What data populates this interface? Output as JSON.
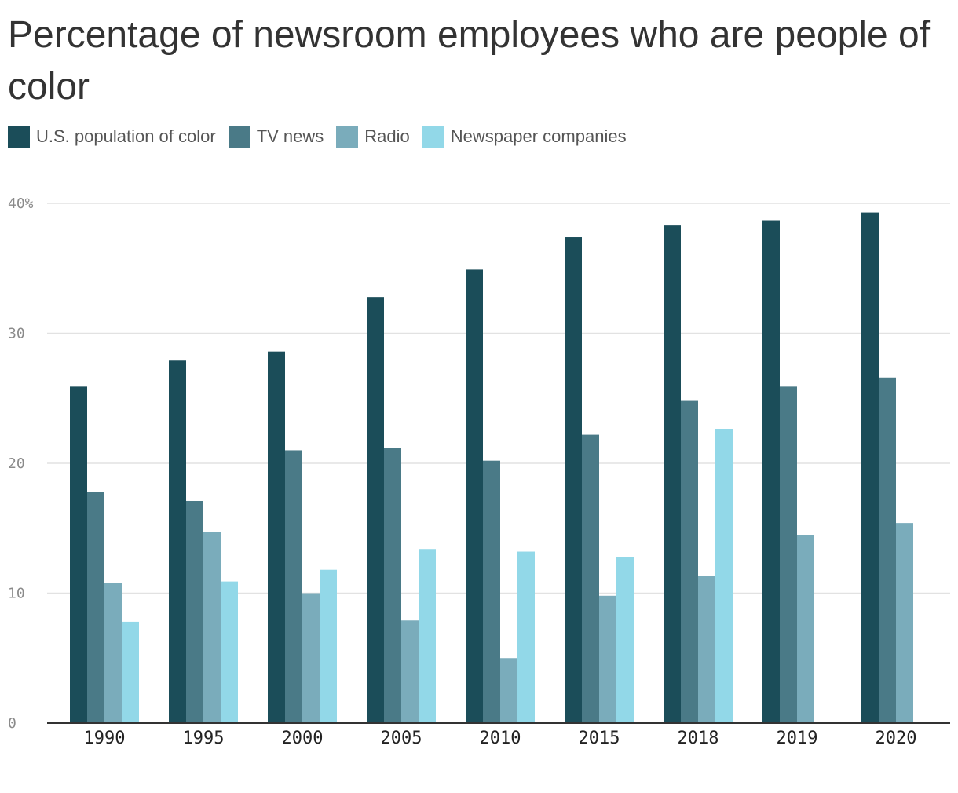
{
  "chart_data": {
    "type": "bar",
    "title": "Percentage of newsroom employees who are people of color",
    "xlabel": "",
    "ylabel": "",
    "categories": [
      "1990",
      "1995",
      "2000",
      "2005",
      "2010",
      "2015",
      "2018",
      "2019",
      "2020"
    ],
    "series": [
      {
        "name": "U.S. population of color",
        "color": "#1b4d59",
        "values": [
          25.9,
          27.9,
          28.6,
          32.8,
          34.9,
          37.4,
          38.3,
          38.7,
          39.3
        ]
      },
      {
        "name": "TV news",
        "color": "#4a7a87",
        "values": [
          17.8,
          17.1,
          21.0,
          21.2,
          20.2,
          22.2,
          24.8,
          25.9,
          26.6
        ]
      },
      {
        "name": "Radio",
        "color": "#7aacbb",
        "values": [
          10.8,
          14.7,
          10.0,
          7.9,
          5.0,
          9.8,
          11.3,
          14.5,
          15.4
        ]
      },
      {
        "name": "Newspaper companies",
        "color": "#92d8e8",
        "values": [
          7.8,
          10.9,
          11.8,
          13.4,
          13.2,
          12.8,
          22.6,
          null,
          null
        ]
      }
    ],
    "ylim": [
      0,
      40
    ],
    "yticks": [
      {
        "value": 0,
        "label": "0"
      },
      {
        "value": 10,
        "label": "10"
      },
      {
        "value": 20,
        "label": "20"
      },
      {
        "value": 30,
        "label": "30"
      },
      {
        "value": 40,
        "label": "40%"
      }
    ],
    "grid": true,
    "legend_position": "top-left"
  }
}
